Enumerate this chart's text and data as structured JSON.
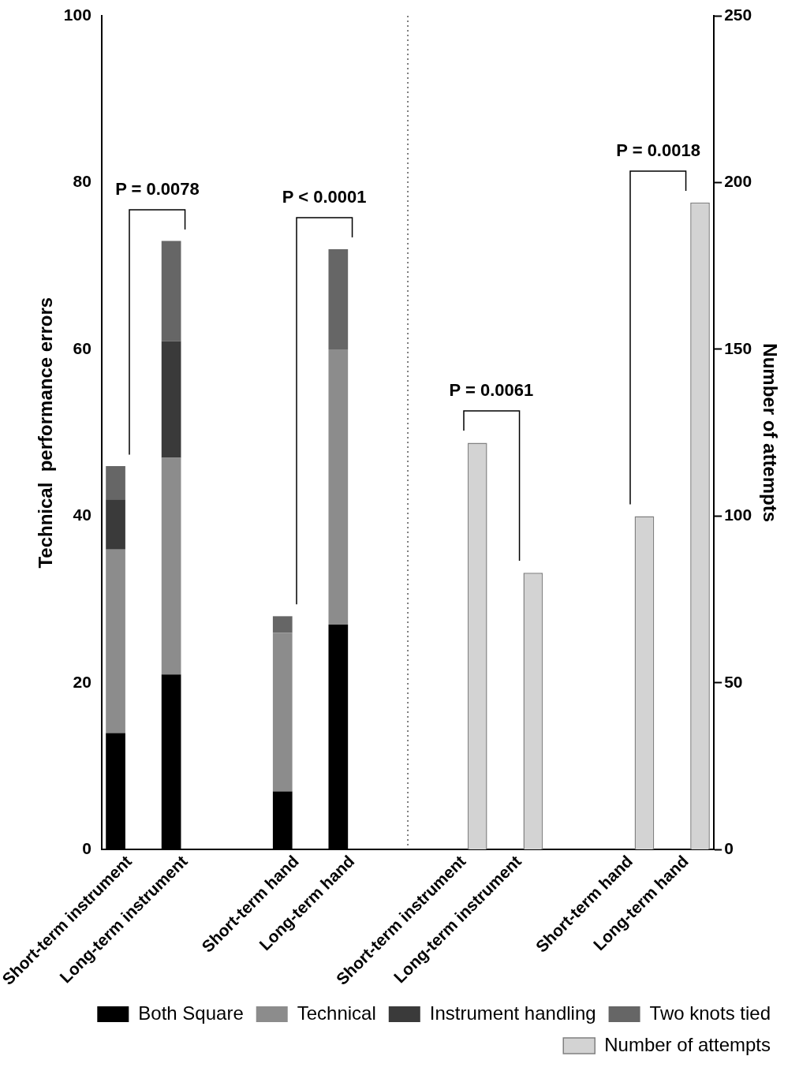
{
  "chart_data": {
    "type": "bar",
    "stacked": true,
    "ylabel": "Technical  performance errors",
    "y2label": "Number of attempts",
    "categories": [
      "Short-term instrument",
      "Long-term instrument",
      null,
      "Short-term hand",
      "Long-term hand",
      null,
      "Short-term instrument",
      "Long-term instrument",
      null,
      "Short-term hand",
      "Long-term hand"
    ],
    "series": [
      {
        "name": "Both Square",
        "color": "#000000",
        "values": [
          14,
          21,
          null,
          7,
          27,
          null,
          null,
          null,
          null,
          null,
          null
        ]
      },
      {
        "name": "Technical",
        "color": "#8c8c8c",
        "values": [
          22,
          26,
          null,
          19,
          33,
          null,
          null,
          null,
          null,
          null,
          null
        ]
      },
      {
        "name": "Instrument handling",
        "color": "#3a3a3a",
        "values": [
          6,
          14,
          null,
          0,
          0,
          null,
          null,
          null,
          null,
          null,
          null
        ]
      },
      {
        "name": "Two knots tied",
        "color": "#666666",
        "values": [
          4,
          12,
          null,
          2,
          12,
          null,
          null,
          null,
          null,
          null,
          null
        ]
      },
      {
        "name": "Number of attempts",
        "color": "#d3d3d3",
        "axis": "y2",
        "values": [
          null,
          null,
          null,
          null,
          null,
          null,
          122,
          83,
          null,
          100,
          194
        ]
      }
    ],
    "ylim": [
      0,
      100
    ],
    "yticks": [
      0,
      20,
      40,
      60,
      80,
      100
    ],
    "y2lim": [
      0,
      250
    ],
    "y2ticks": [
      0,
      50,
      100,
      150,
      200,
      250
    ],
    "legend": "bottom right",
    "annotations": [
      "P = 0.0078",
      "P < 0.0001",
      "P = 0.0061",
      "P = 0.0018"
    ]
  }
}
